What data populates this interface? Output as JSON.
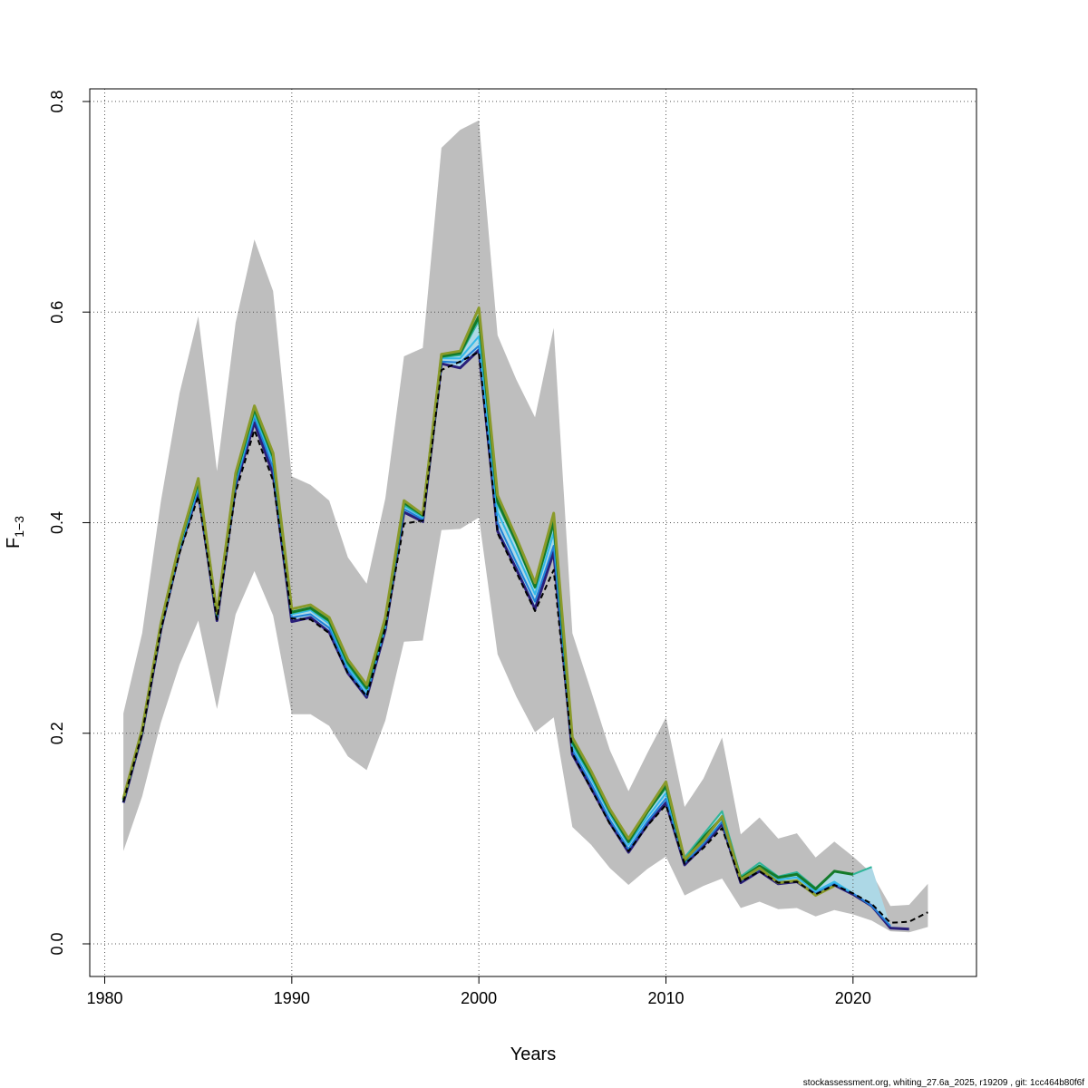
{
  "chart_data": {
    "type": "line",
    "title": "",
    "xlabel": "Years",
    "ylabel_main": "F",
    "ylabel_sub": "1−3",
    "xlim": [
      1979.2,
      2026.6
    ],
    "ylim": [
      -0.031,
      0.812
    ],
    "x_ticks": [
      1980,
      1990,
      2000,
      2010,
      2020
    ],
    "y_ticks": [
      0.0,
      0.2,
      0.4,
      0.6,
      0.8
    ],
    "x_tick_labels": [
      "1980",
      "1990",
      "2000",
      "2010",
      "2020"
    ],
    "y_tick_labels": [
      "0.0",
      "0.2",
      "0.4",
      "0.6",
      "0.8"
    ],
    "grid": true,
    "confidence_band": {
      "x": [
        1981,
        1982,
        1983,
        1984,
        1985,
        1986,
        1987,
        1988,
        1989,
        1990,
        1991,
        1992,
        1993,
        1994,
        1995,
        1996,
        1997,
        1998,
        1999,
        2000,
        2001,
        2002,
        2003,
        2004,
        2005,
        2006,
        2007,
        2008,
        2009,
        2010,
        2011,
        2012,
        2013,
        2014,
        2015,
        2016,
        2017,
        2018,
        2019,
        2020,
        2021,
        2022,
        2023,
        2024
      ],
      "lower": [
        0.088,
        0.14,
        0.21,
        0.265,
        0.307,
        0.223,
        0.313,
        0.354,
        0.312,
        0.218,
        0.218,
        0.207,
        0.178,
        0.165,
        0.212,
        0.287,
        0.288,
        0.393,
        0.394,
        0.405,
        0.275,
        0.235,
        0.201,
        0.215,
        0.111,
        0.094,
        0.072,
        0.056,
        0.071,
        0.083,
        0.046,
        0.055,
        0.062,
        0.034,
        0.04,
        0.033,
        0.034,
        0.026,
        0.032,
        0.028,
        0.022,
        0.012,
        0.011,
        0.016
      ],
      "upper": [
        0.219,
        0.295,
        0.42,
        0.523,
        0.596,
        0.449,
        0.59,
        0.669,
        0.62,
        0.444,
        0.436,
        0.421,
        0.367,
        0.342,
        0.423,
        0.558,
        0.566,
        0.756,
        0.773,
        0.782,
        0.578,
        0.536,
        0.5,
        0.585,
        0.295,
        0.24,
        0.184,
        0.145,
        0.181,
        0.215,
        0.13,
        0.157,
        0.196,
        0.104,
        0.12,
        0.1,
        0.105,
        0.082,
        0.097,
        0.083,
        0.067,
        0.036,
        0.037,
        0.057
      ]
    },
    "series": [
      {
        "color": "#2a1f7a",
        "width": 3,
        "dashed": false,
        "x": [
          1981,
          1982,
          1983,
          1984,
          1985,
          1986,
          1987,
          1988,
          1989,
          1990,
          1991,
          1992,
          1993,
          1994,
          1995,
          1996,
          1997,
          1998,
          1999,
          2000,
          2001,
          2002,
          2003,
          2004,
          2005,
          2006,
          2007,
          2008,
          2009,
          2010,
          2011,
          2012,
          2013,
          2014,
          2015,
          2016,
          2017,
          2018,
          2019,
          2020,
          2021,
          2022,
          2023
        ],
        "values": [
          0.134,
          0.2,
          0.298,
          0.373,
          0.43,
          0.307,
          0.435,
          0.495,
          0.446,
          0.306,
          0.31,
          0.296,
          0.257,
          0.234,
          0.298,
          0.41,
          0.401,
          0.551,
          0.547,
          0.564,
          0.392,
          0.356,
          0.318,
          0.372,
          0.18,
          0.148,
          0.115,
          0.087,
          0.113,
          0.134,
          0.075,
          0.093,
          0.114,
          0.058,
          0.069,
          0.057,
          0.059,
          0.047,
          0.056,
          0.047,
          0.036,
          0.015,
          0.014
        ]
      },
      {
        "color": "#1f7fd8",
        "width": 2,
        "dashed": false,
        "x": [
          1981,
          1982,
          1983,
          1984,
          1985,
          1986,
          1987,
          1988,
          1989,
          1990,
          1991,
          1992,
          1993,
          1994,
          1995,
          1996,
          1997,
          1998,
          1999,
          2000,
          2001,
          2002,
          2003,
          2004,
          2005,
          2006,
          2007,
          2008,
          2009,
          2010,
          2011,
          2012,
          2013,
          2014,
          2015,
          2016,
          2017,
          2018,
          2019,
          2020,
          2021,
          2022
        ],
        "values": [
          0.135,
          0.201,
          0.299,
          0.374,
          0.432,
          0.309,
          0.437,
          0.5,
          0.452,
          0.31,
          0.313,
          0.3,
          0.26,
          0.236,
          0.3,
          0.413,
          0.403,
          0.553,
          0.552,
          0.568,
          0.4,
          0.362,
          0.325,
          0.378,
          0.184,
          0.152,
          0.118,
          0.09,
          0.116,
          0.138,
          0.077,
          0.095,
          0.116,
          0.06,
          0.071,
          0.059,
          0.06,
          0.048,
          0.057,
          0.048,
          0.036,
          0.017
        ]
      },
      {
        "color": "#33b8e8",
        "width": 2,
        "dashed": false,
        "x": [
          1981,
          1982,
          1983,
          1984,
          1985,
          1986,
          1987,
          1988,
          1989,
          1990,
          1991,
          1992,
          1993,
          1994,
          1995,
          1996,
          1997,
          1998,
          1999,
          2000,
          2001,
          2002,
          2003,
          2004,
          2005,
          2006,
          2007,
          2008,
          2009,
          2010,
          2011,
          2012,
          2013,
          2014,
          2015,
          2016,
          2017,
          2018,
          2019,
          2020
        ],
        "values": [
          0.136,
          0.202,
          0.301,
          0.376,
          0.435,
          0.311,
          0.44,
          0.503,
          0.458,
          0.313,
          0.317,
          0.304,
          0.263,
          0.24,
          0.303,
          0.416,
          0.405,
          0.556,
          0.556,
          0.577,
          0.41,
          0.372,
          0.332,
          0.39,
          0.188,
          0.157,
          0.123,
          0.094,
          0.12,
          0.143,
          0.08,
          0.1,
          0.121,
          0.062,
          0.074,
          0.061,
          0.063,
          0.05,
          0.059,
          0.048
        ]
      },
      {
        "color": "#2fb59a",
        "width": 2,
        "dashed": false,
        "x": [
          1981,
          1982,
          1983,
          1984,
          1985,
          1986,
          1987,
          1988,
          1989,
          1990,
          1991,
          1992,
          1993,
          1994,
          1995,
          1996,
          1997,
          1998,
          1999,
          2000,
          2001,
          2002,
          2003,
          2004,
          2005,
          2006,
          2007,
          2008,
          2009,
          2010,
          2011,
          2012,
          2013,
          2014,
          2015,
          2016,
          2017,
          2018,
          2019,
          2020,
          2021
        ],
        "values": [
          0.137,
          0.203,
          0.302,
          0.378,
          0.437,
          0.312,
          0.442,
          0.505,
          0.461,
          0.314,
          0.318,
          0.306,
          0.265,
          0.242,
          0.305,
          0.417,
          0.406,
          0.557,
          0.559,
          0.592,
          0.418,
          0.38,
          0.338,
          0.398,
          0.19,
          0.16,
          0.126,
          0.097,
          0.125,
          0.148,
          0.082,
          0.104,
          0.126,
          0.064,
          0.077,
          0.064,
          0.068,
          0.053,
          0.069,
          0.066,
          0.073
        ]
      },
      {
        "color": "#147a2a",
        "width": 3,
        "dashed": false,
        "x": [
          1981,
          1982,
          1983,
          1984,
          1985,
          1986,
          1987,
          1988,
          1989,
          1990,
          1991,
          1992,
          1993,
          1994,
          1995,
          1996,
          1997,
          1998,
          1999,
          2000,
          2001,
          2002,
          2003,
          2004,
          2005,
          2006,
          2007,
          2008,
          2009,
          2010,
          2011,
          2012,
          2013,
          2014,
          2015,
          2016,
          2017,
          2018,
          2019,
          2020
        ],
        "values": [
          0.137,
          0.203,
          0.303,
          0.379,
          0.439,
          0.313,
          0.444,
          0.508,
          0.463,
          0.315,
          0.319,
          0.307,
          0.267,
          0.243,
          0.307,
          0.419,
          0.407,
          0.558,
          0.561,
          0.596,
          0.42,
          0.382,
          0.339,
          0.401,
          0.192,
          0.161,
          0.126,
          0.097,
          0.125,
          0.15,
          0.079,
          0.101,
          0.12,
          0.062,
          0.074,
          0.063,
          0.066,
          0.052,
          0.069,
          0.066
        ]
      },
      {
        "color": "#8a9a2a",
        "width": 3,
        "dashed": false,
        "x": [
          1981,
          1982,
          1983,
          1984,
          1985,
          1986,
          1987,
          1988,
          1989,
          1990,
          1991,
          1992,
          1993,
          1994,
          1995,
          1996,
          1997,
          1998,
          1999,
          2000,
          2001,
          2002,
          2003,
          2004,
          2005,
          2006,
          2007,
          2008,
          2009,
          2010,
          2011,
          2012,
          2013,
          2014,
          2015,
          2016,
          2017,
          2018,
          2019
        ],
        "values": [
          0.138,
          0.204,
          0.304,
          0.38,
          0.442,
          0.314,
          0.447,
          0.511,
          0.466,
          0.318,
          0.322,
          0.31,
          0.27,
          0.246,
          0.31,
          0.421,
          0.408,
          0.56,
          0.563,
          0.604,
          0.426,
          0.386,
          0.343,
          0.409,
          0.196,
          0.164,
          0.128,
          0.1,
          0.127,
          0.154,
          0.08,
          0.098,
          0.121,
          0.061,
          0.072,
          0.058,
          0.06,
          0.046,
          0.055
        ]
      },
      {
        "color": "#000000",
        "width": 2,
        "dashed": true,
        "x": [
          1981,
          1982,
          1983,
          1984,
          1985,
          1986,
          1987,
          1988,
          1989,
          1990,
          1991,
          1992,
          1993,
          1994,
          1995,
          1996,
          1997,
          1998,
          1999,
          2000,
          2001,
          2002,
          2003,
          2004,
          2005,
          2006,
          2007,
          2008,
          2009,
          2010,
          2011,
          2012,
          2013,
          2014,
          2015,
          2016,
          2017,
          2018,
          2019,
          2020,
          2021,
          2022,
          2023,
          2024
        ],
        "values": [
          0.135,
          0.2,
          0.298,
          0.371,
          0.425,
          0.308,
          0.429,
          0.488,
          0.44,
          0.309,
          0.308,
          0.295,
          0.257,
          0.235,
          0.3,
          0.399,
          0.402,
          0.545,
          0.553,
          0.562,
          0.39,
          0.353,
          0.316,
          0.355,
          0.181,
          0.147,
          0.114,
          0.088,
          0.112,
          0.132,
          0.076,
          0.091,
          0.11,
          0.059,
          0.069,
          0.058,
          0.059,
          0.047,
          0.056,
          0.048,
          0.038,
          0.02,
          0.021,
          0.03
        ]
      }
    ],
    "colors": {
      "band": "#bebebe",
      "band_inner": "#add8e6",
      "grid": "#555555",
      "axis": "#000000"
    }
  },
  "footer": {
    "credit": "stockassessment.org, whiting_27.6a_2025, r19209 , git: 1cc464b80f6f"
  }
}
